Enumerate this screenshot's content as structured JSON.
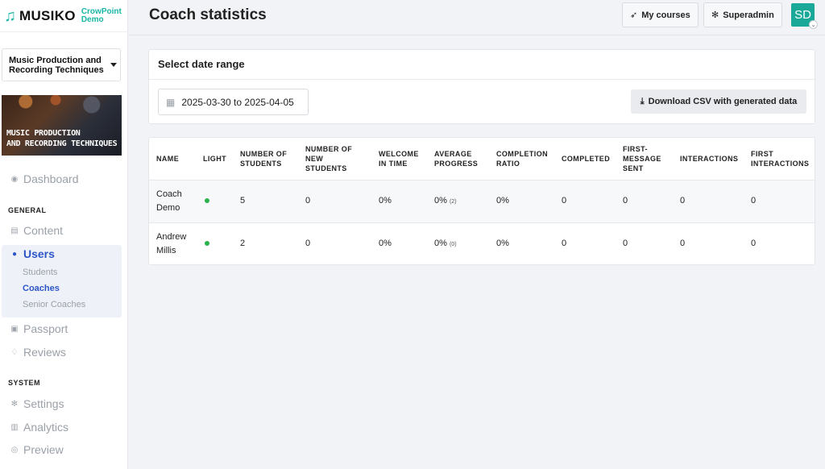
{
  "brand": {
    "name": "MUSIKO",
    "sub_line1": "CrowPoint",
    "sub_line2": "Demo"
  },
  "course": {
    "selected_line1": "Music Production and",
    "selected_line2": "Recording Techniques",
    "banner_line1": "MUSIC PRODUCTION",
    "banner_line2": "AND RECORDING TECHNIQUES"
  },
  "nav": {
    "dashboard": "Dashboard",
    "general_label": "GENERAL",
    "content": "Content",
    "users": "Users",
    "students": "Students",
    "coaches": "Coaches",
    "senior_coaches": "Senior Coaches",
    "passport": "Passport",
    "reviews": "Reviews",
    "system_label": "SYSTEM",
    "settings": "Settings",
    "analytics": "Analytics",
    "preview": "Preview"
  },
  "header": {
    "title": "Coach statistics",
    "my_courses": "My courses",
    "superadmin": "Superadmin",
    "avatar_initials": "SD"
  },
  "date_range": {
    "heading": "Select date range",
    "value": "2025-03-30 to 2025-04-05",
    "csv_button": "Download CSV with generated data"
  },
  "table": {
    "columns": [
      [
        "NAME"
      ],
      [
        "LIGHT"
      ],
      [
        "NUMBER OF",
        "STUDENTS"
      ],
      [
        "NUMBER OF",
        "NEW",
        "STUDENTS"
      ],
      [
        "WELCOME",
        "IN TIME"
      ],
      [
        "AVERAGE",
        "PROGRESS"
      ],
      [
        "COMPLETION",
        "RATIO"
      ],
      [
        "COMPLETED"
      ],
      [
        "FIRST-",
        "MESSAGE",
        "SENT"
      ],
      [
        "INTERACTIONS"
      ],
      [
        "FIRST",
        "INTERACTIONS"
      ]
    ],
    "rows": [
      {
        "name_1": "Coach",
        "name_2": "Demo",
        "light": "green",
        "students": "5",
        "new_students": "0",
        "welcome": "0%",
        "avg_progress": "0%",
        "avg_progress_count": "(2)",
        "completion_ratio": "0%",
        "completed": "0",
        "first_message": "0",
        "interactions": "0",
        "first_interactions": "0"
      },
      {
        "name_1": "Andrew",
        "name_2": "Millis",
        "light": "green",
        "students": "2",
        "new_students": "0",
        "welcome": "0%",
        "avg_progress": "0%",
        "avg_progress_count": "(0)",
        "completion_ratio": "0%",
        "completed": "0",
        "first_message": "0",
        "interactions": "0",
        "first_interactions": "0"
      }
    ]
  },
  "colors": {
    "accent": "#2d56c7",
    "brand": "#1ab5a6",
    "light_green": "#2bb24c"
  }
}
